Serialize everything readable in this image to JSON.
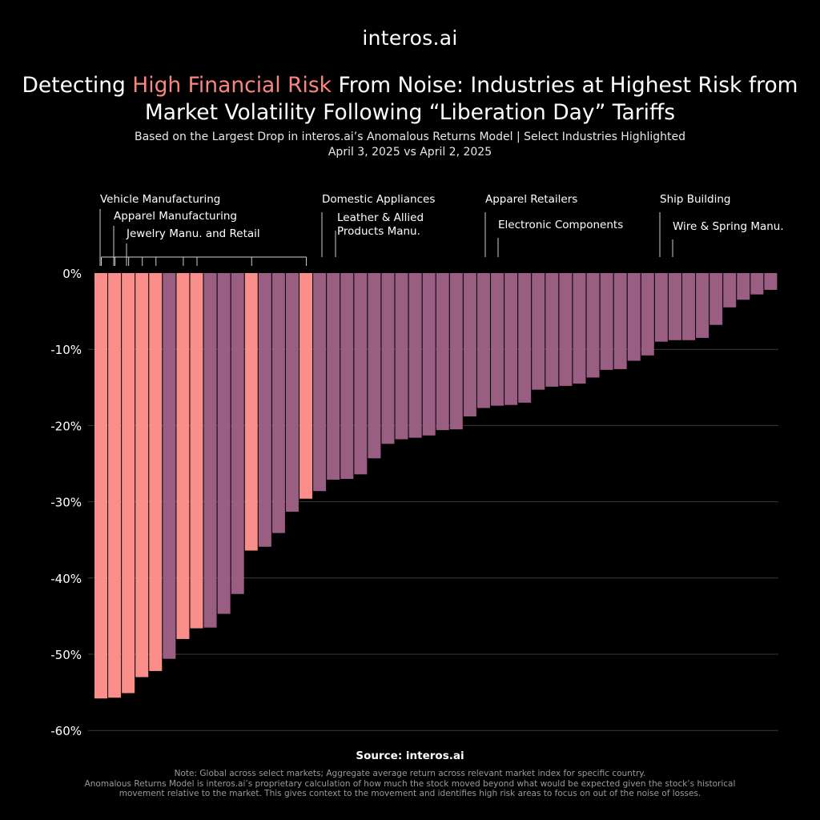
{
  "logo": {
    "text": "interos.ai"
  },
  "title": {
    "part1": "Detecting ",
    "highlight": "High Financial Risk",
    "part2": " From Noise: Industries at Highest Risk from Market Volatility Following “Liberation Day” Tariffs"
  },
  "subtitle": {
    "line1": "Based on the Largest Drop in interos.ai’s Anomalous Returns Model |  Select Industries Highlighted",
    "line2": "April 3, 2025 vs April 2, 2025"
  },
  "source": "Source: interos.ai",
  "notes": {
    "line1": "Note: Global across select markets; Aggregate average return across relevant market index for specific country.",
    "line2": "Anomalous Returns Model is interos.ai’s proprietary calculation of how much the stock moved beyond what would be expected given the stock’s historical",
    "line3": "movement relative to the market. This gives context to the movement and identifies high risk areas to focus on out of the noise of losses."
  },
  "colors": {
    "background": "#000000",
    "highlight_bar": "#f98e8b",
    "default_bar": "#9b5e83",
    "title_highlight": "#f9877f",
    "gridline": "#3a3a3a",
    "callout_line": "#cfcfcf"
  },
  "chart_data": {
    "type": "bar",
    "ylim": [
      -60,
      0
    ],
    "yticks": [
      0,
      -10,
      -20,
      -30,
      -40,
      -50,
      -60
    ],
    "ytick_labels": [
      "0%",
      "-10%",
      "-20%",
      "-30%",
      "-40%",
      "-50%",
      "-60%"
    ],
    "grid": true,
    "values": [
      -55.8,
      -55.7,
      -55.1,
      -53.0,
      -52.2,
      -50.6,
      -48.0,
      -46.6,
      -46.5,
      -44.7,
      -42.1,
      -36.4,
      -35.9,
      -34.1,
      -31.3,
      -29.6,
      -28.6,
      -27.1,
      -27.0,
      -26.4,
      -24.3,
      -22.4,
      -21.8,
      -21.6,
      -21.3,
      -20.6,
      -20.5,
      -18.8,
      -17.7,
      -17.4,
      -17.3,
      -17.0,
      -15.3,
      -14.9,
      -14.8,
      -14.5,
      -13.7,
      -12.7,
      -12.6,
      -11.5,
      -10.8,
      -9.0,
      -8.8,
      -8.8,
      -8.5,
      -6.8,
      -4.5,
      -3.5,
      -2.8,
      -2.2
    ],
    "highlighted_indices": [
      0,
      1,
      2,
      3,
      4,
      6,
      7,
      11,
      15
    ],
    "annotations": [
      {
        "label": "Vehicle Manufacturing",
        "bar": 0,
        "level": 0
      },
      {
        "label": "Apparel Manufacturing",
        "bar": 1,
        "level": 1
      },
      {
        "label": "Jewelry Manu. and Retail",
        "bar": 2,
        "level": 2
      },
      {
        "label": "Domestic Appliances",
        "bar": 3,
        "level": 0
      },
      {
        "label": "Leather & Allied Products Manu.",
        "bar": 4,
        "level": 1
      },
      {
        "label": "Apparel Retailers",
        "bar": 6,
        "level": 0
      },
      {
        "label": "Electronic Components",
        "bar": 7,
        "level": 1
      },
      {
        "label": "Ship Building",
        "bar": 11,
        "level": 0
      },
      {
        "label": "Wire & Spring Manu.",
        "bar": 15,
        "level": 1
      }
    ]
  }
}
